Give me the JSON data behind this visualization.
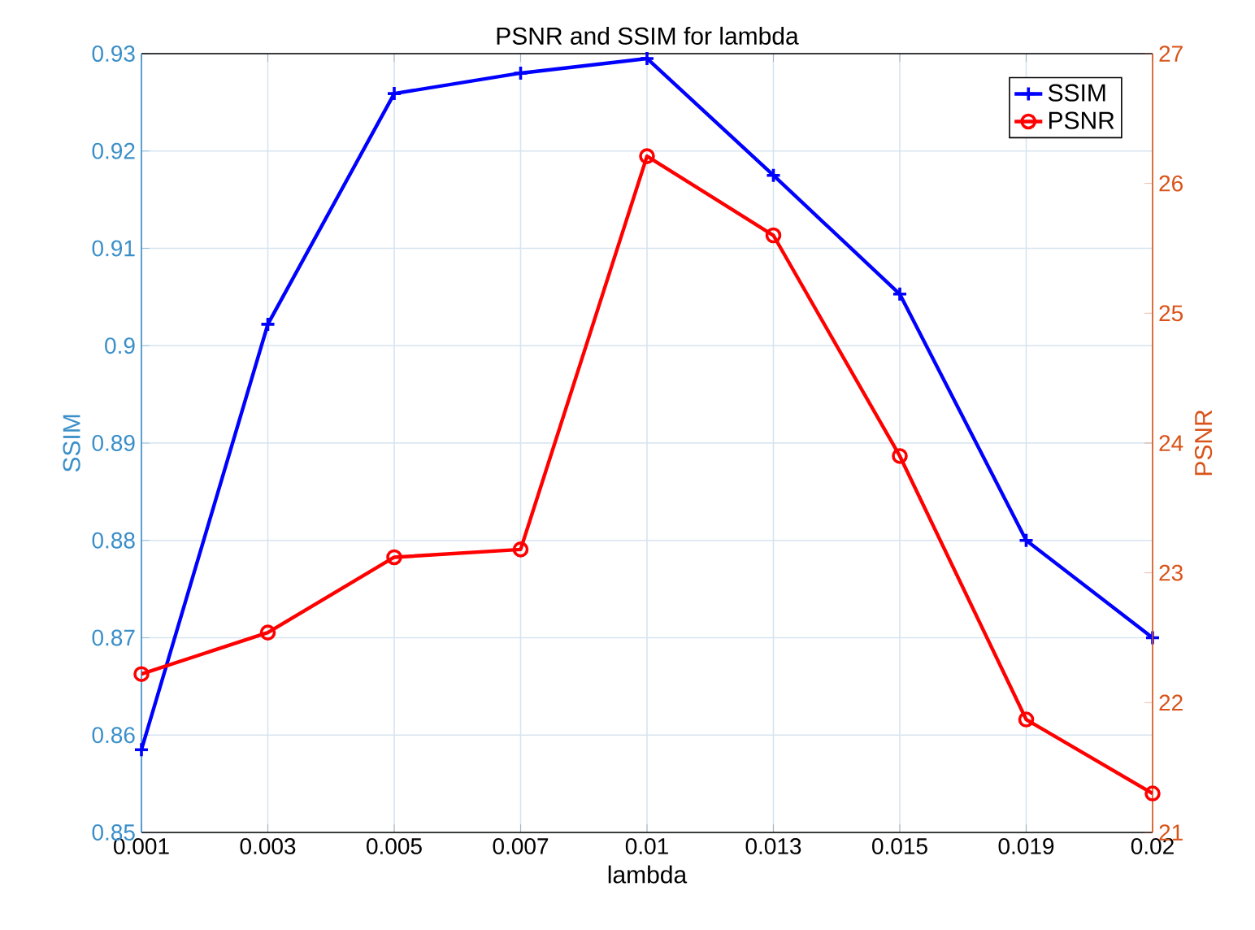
{
  "chart_data": {
    "type": "line",
    "title": "PSNR and SSIM for lambda",
    "xlabel": "lambda",
    "ylabel": "SSIM",
    "y2label": "PSNR",
    "categories": [
      "0.001",
      "0.003",
      "0.005",
      "0.007",
      "0.01",
      "0.013",
      "0.015",
      "0.019",
      "0.02"
    ],
    "series": [
      {
        "name": "SSIM",
        "color": "#0000ff",
        "marker": "cross",
        "values": [
          0.8585,
          0.9022,
          0.9259,
          0.928,
          0.9295,
          0.9175,
          0.9053,
          0.88,
          0.87
        ]
      },
      {
        "name": "PSNR",
        "color": "#ff0000",
        "marker": "circle",
        "axis": "y2",
        "values": [
          22.22,
          22.54,
          23.12,
          23.18,
          26.21,
          25.6,
          23.9,
          21.87,
          21.3
        ]
      }
    ],
    "ylim": [
      0.85,
      0.93
    ],
    "yticks": [
      0.85,
      0.86,
      0.87,
      0.88,
      0.89,
      0.9,
      0.91,
      0.92,
      0.93
    ],
    "y2lim": [
      21,
      27
    ],
    "y2ticks": [
      21,
      22,
      23,
      24,
      25,
      26,
      27
    ],
    "grid": true,
    "legend": "top right",
    "line_style": "solid"
  }
}
